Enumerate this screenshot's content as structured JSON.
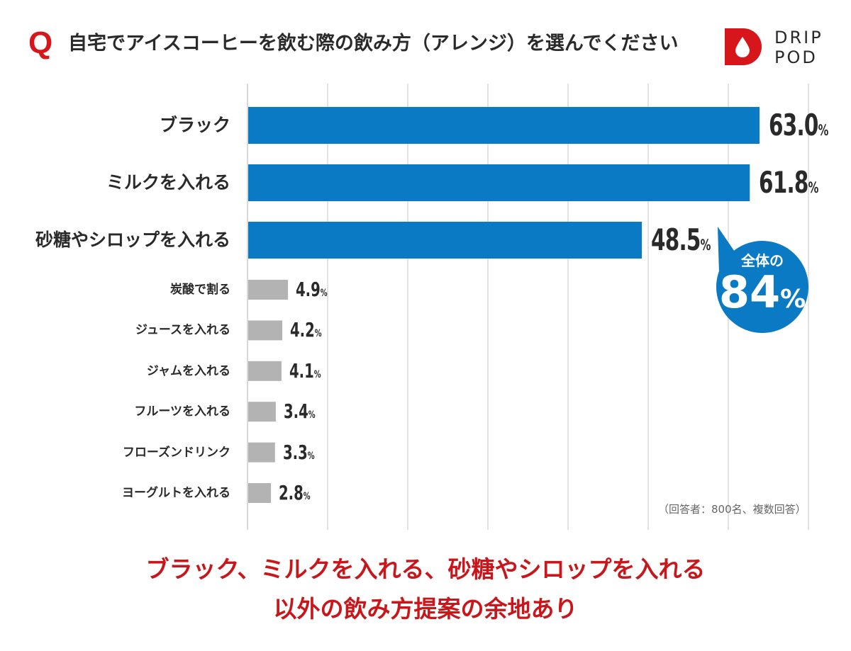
{
  "header": {
    "q_mark": "Q",
    "title": "自宅でアイスコーヒーを飲む際の飲み方（アレンジ）を選んでください"
  },
  "logo": {
    "line1": "DRIP",
    "line2": "POD",
    "icon": "water-drop-icon"
  },
  "chart_data": {
    "type": "bar",
    "orientation": "horizontal",
    "categories": [
      "ブラック",
      "ミルクを入れる",
      "砂糖やシロップを入れる",
      "炭酸で割る",
      "ジュースを入れる",
      "ジャムを入れる",
      "フルーツを入れる",
      "フローズンドリンク",
      "ヨーグルトを入れる"
    ],
    "values": [
      63.0,
      61.8,
      48.5,
      4.9,
      4.2,
      4.1,
      3.4,
      3.3,
      2.8
    ],
    "value_labels": [
      "63.0",
      "61.8",
      "48.5",
      "4.9",
      "4.2",
      "4.1",
      "3.4",
      "3.3",
      "2.8"
    ],
    "unit": "%",
    "highlight_count": 3,
    "colors": {
      "highlight": "#0a7ac4",
      "other": "#b3b3b3",
      "grid": "#d9d9d9"
    },
    "xlim": [
      0,
      70
    ],
    "grid": true
  },
  "callout": {
    "line1": "全体の",
    "value": "84",
    "unit": "%",
    "color": "#0a7ac4"
  },
  "note": "（回答者：800名、複数回答）",
  "summary": {
    "line1": "ブラック、ミルクを入れる、砂糖やシロップを入れる",
    "line2": "以外の飲み方提案の余地あり"
  }
}
